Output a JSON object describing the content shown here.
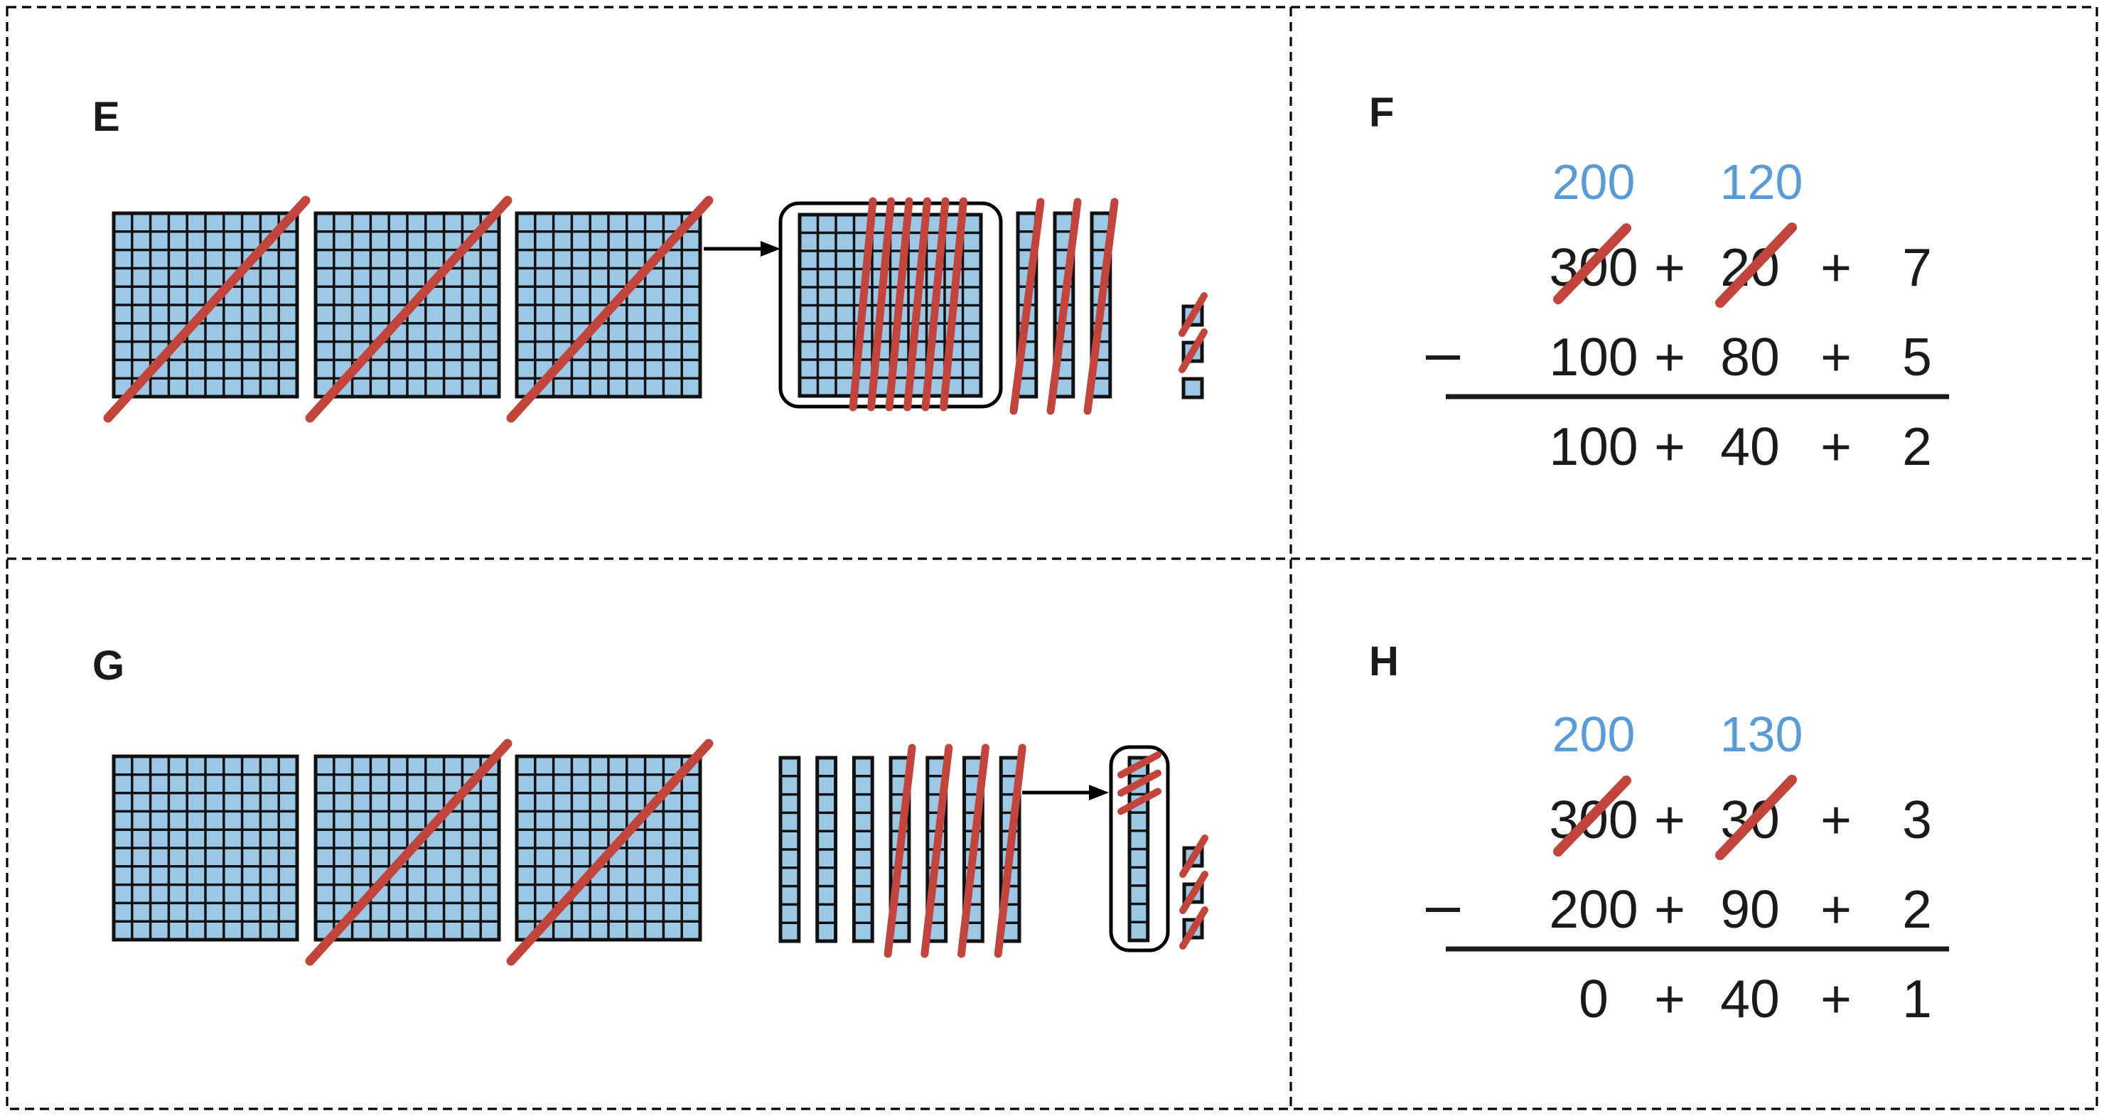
{
  "colors": {
    "background": "#ffffff",
    "block_fill": "#9cc8e6",
    "block_stroke": "#111111",
    "cross_red": "#c1453d",
    "regroup_blue": "#5b9bd5",
    "text": "#1a1a1a",
    "border": "#000000"
  },
  "panel_e": {
    "label": "E",
    "model": {
      "hundreds_crossed": [
        true,
        true,
        true
      ],
      "decomposed_hundred": {
        "total_tens": 10,
        "crossed_tens": 6
      },
      "tens_crossed": [
        true,
        true,
        true
      ],
      "ones_crossed": [
        true,
        true,
        false
      ]
    }
  },
  "panel_f": {
    "label": "F",
    "equation": {
      "regroup_hundreds": "200",
      "regroup_tens": "120",
      "minuend": {
        "hundreds": "300",
        "tens": "20",
        "ones": "7"
      },
      "minuend_crossed": {
        "hundreds": true,
        "tens": true,
        "ones": false
      },
      "subtrahend": {
        "hundreds": "100",
        "tens": "80",
        "ones": "5"
      },
      "difference": {
        "hundreds": "100",
        "tens": "40",
        "ones": "2"
      },
      "plus": "+",
      "minus": "−"
    }
  },
  "panel_g": {
    "label": "G",
    "model": {
      "hundreds_crossed": [
        false,
        true,
        true
      ],
      "tens_crossed": [
        false,
        false,
        false,
        true,
        true,
        true,
        true
      ],
      "decomposed_ten": {
        "total_ones": 10,
        "crossed_ones": 3
      },
      "ones_crossed": [
        true,
        true,
        true
      ]
    }
  },
  "panel_h": {
    "label": "H",
    "equation": {
      "regroup_hundreds": "200",
      "regroup_tens": "130",
      "minuend": {
        "hundreds": "300",
        "tens": "30",
        "ones": "3"
      },
      "minuend_crossed": {
        "hundreds": true,
        "tens": true,
        "ones": false
      },
      "subtrahend": {
        "hundreds": "200",
        "tens": "90",
        "ones": "2"
      },
      "difference": {
        "hundreds": "0",
        "tens": "40",
        "ones": "1"
      },
      "plus": "+",
      "minus": "−"
    }
  }
}
